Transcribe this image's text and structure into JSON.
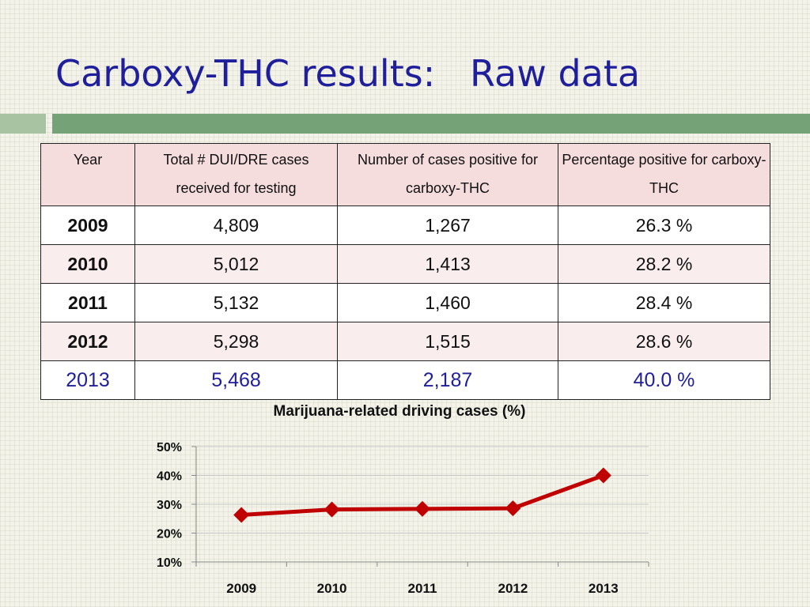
{
  "slide": {
    "title": "Carboxy-THC results:   Raw data"
  },
  "table": {
    "headers": [
      "Year",
      "Total # DUI/DRE cases received for testing",
      "Number of cases positive for carboxy-THC",
      "Percentage positive for carboxy-THC"
    ],
    "rows": [
      [
        "2009",
        "4,809",
        "1,267",
        "26.3  %"
      ],
      [
        "2010",
        "5,012",
        "1,413",
        "28.2  %"
      ],
      [
        "2011",
        "5,132",
        "1,460",
        "28.4  %"
      ],
      [
        "2012",
        "5,298",
        "1,515",
        "28.6  %"
      ],
      [
        "2013",
        "5,468",
        "2,187",
        "40.0  %"
      ]
    ],
    "highlight_color": "#1f1f9c"
  },
  "chart_data": {
    "type": "line",
    "title": "Marijuana-related driving cases (%)",
    "categories": [
      "2009",
      "2010",
      "2011",
      "2012",
      "2013"
    ],
    "series": [
      {
        "values": [
          26.3,
          28.2,
          28.4,
          28.6,
          40.0
        ],
        "color": "#c00000",
        "marker": "diamond"
      }
    ],
    "y_ticks": [
      "50%",
      "40%",
      "30%",
      "20%",
      "10%"
    ],
    "ylim": [
      10,
      50
    ],
    "grid": true
  }
}
